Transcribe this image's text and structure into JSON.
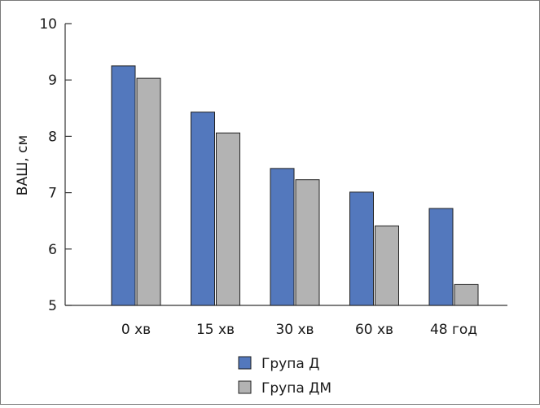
{
  "chart_data": {
    "type": "bar",
    "title": "",
    "ylabel": "ВАШ, см",
    "xlabel": "",
    "ylim": [
      5,
      10
    ],
    "yticks": [
      5,
      6,
      7,
      8,
      9,
      10
    ],
    "categories": [
      "0 хв",
      "15 хв",
      "30 хв",
      "60 хв",
      "48 год"
    ],
    "series": [
      {
        "name": "Група Д",
        "color": "#5378bd",
        "values": [
          9.25,
          8.43,
          7.43,
          7.01,
          6.72
        ]
      },
      {
        "name": "Група ДМ",
        "color": "#b3b3b3",
        "values": [
          9.03,
          8.06,
          7.23,
          6.41,
          5.37
        ]
      }
    ],
    "legend_position": "bottom",
    "grid": false
  }
}
